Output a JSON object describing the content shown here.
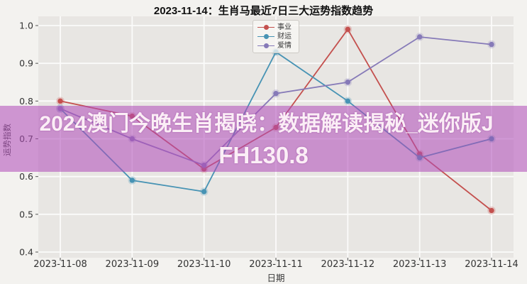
{
  "title": "2023-11-14：生肖马最近7日三大运势指数趋势",
  "overlay": {
    "line1": "2024澳门今晚生肖揭晓：数据解读揭秘_迷你版J",
    "line2": "FH130.8",
    "band_color": "rgba(177,76,185,0.56)",
    "text_color": "#fbeef6"
  },
  "chart_data": {
    "type": "line",
    "title": "2023-11-14：生肖马最近7日三大运势指数趋势",
    "xlabel": "日期",
    "ylabel": "运势指数",
    "categories": [
      "2023-11-08",
      "2023-11-09",
      "2023-11-10",
      "2023-11-11",
      "2023-11-12",
      "2023-11-13",
      "2023-11-14"
    ],
    "series": [
      {
        "key": "career",
        "label": "事业",
        "color": "#c4504e",
        "values": [
          0.8,
          0.76,
          0.62,
          0.73,
          0.99,
          0.66,
          0.51
        ]
      },
      {
        "key": "wealth",
        "label": "财运",
        "color": "#4793b4",
        "values": [
          0.78,
          0.59,
          0.56,
          0.93,
          0.8,
          0.65,
          0.7
        ]
      },
      {
        "key": "love",
        "label": "爱情",
        "color": "#867ab8",
        "values": [
          0.78,
          0.7,
          0.63,
          0.82,
          0.85,
          0.97,
          0.95
        ]
      }
    ],
    "ylim": [
      0.4,
      1.0
    ],
    "y_ticks": [
      1.0,
      0.9,
      0.8,
      0.7,
      0.6,
      0.5,
      0.4
    ],
    "grid": "on",
    "legend_position": "upper center",
    "plot_bg": "#e8e6e3",
    "grid_color": "#fbfbfa",
    "tick_color": "#333333"
  }
}
